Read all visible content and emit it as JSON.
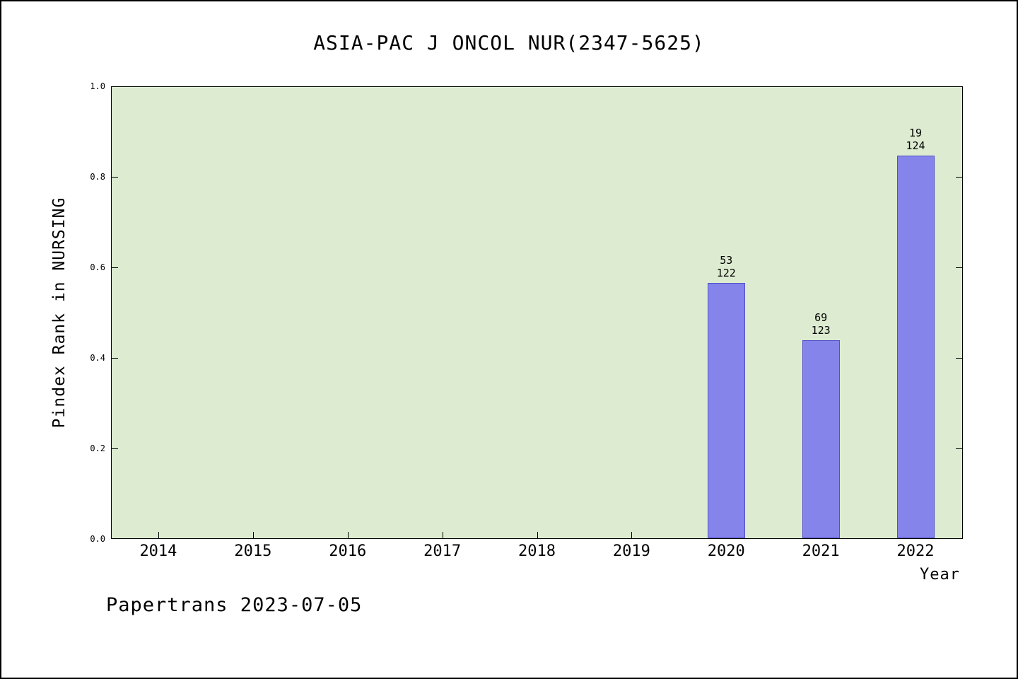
{
  "footer": "Papertrans 2023-07-05",
  "chart_data": {
    "type": "bar",
    "title": "ASIA-PAC J ONCOL NUR(2347-5625)",
    "xlabel": "Year",
    "ylabel": "Pindex Rank in NURSING",
    "ylim": [
      0.0,
      1.0
    ],
    "yticks": [
      "0.0",
      "0.2",
      "0.4",
      "0.6",
      "0.8",
      "1.0"
    ],
    "categories": [
      "2014",
      "2015",
      "2016",
      "2017",
      "2018",
      "2019",
      "2020",
      "2021",
      "2022"
    ],
    "values": [
      null,
      null,
      null,
      null,
      null,
      null,
      0.566,
      0.439,
      0.847
    ],
    "bar_labels": [
      null,
      null,
      null,
      null,
      null,
      null,
      [
        "53",
        "122"
      ],
      [
        "69",
        "123"
      ],
      [
        "19",
        "124"
      ]
    ],
    "legend": null,
    "grid": false,
    "bar_color": "#8484ea",
    "plot_bg": "#ddecd1"
  }
}
